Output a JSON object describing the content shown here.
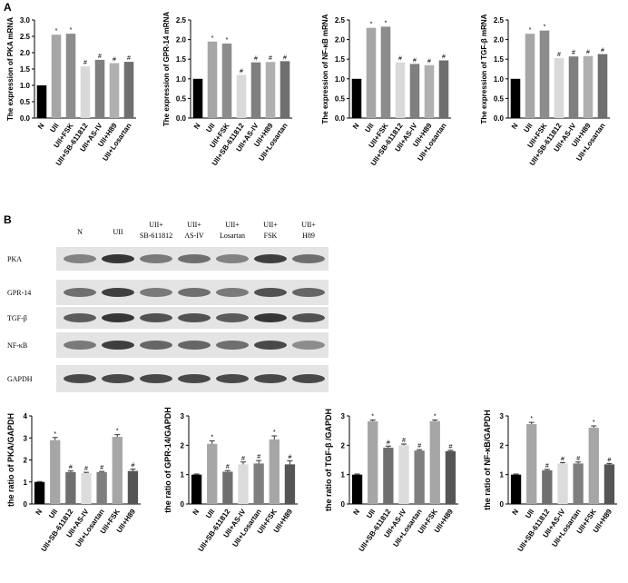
{
  "panel_labels": [
    "A",
    "B"
  ],
  "blot": {
    "lanes": [
      [
        "N"
      ],
      [
        "UII"
      ],
      [
        "UII+",
        "SB-611812"
      ],
      [
        "UII+",
        "AS-IV"
      ],
      [
        "UII+",
        "Losartan"
      ],
      [
        "UII+",
        "FSK"
      ],
      [
        "UII+",
        "H89"
      ]
    ],
    "rows": [
      "PKA",
      "GPR-14",
      "TGF-β",
      "NF-κB",
      "GAPDH"
    ]
  },
  "chart_data": [
    {
      "type": "bar",
      "title": "The expression of PKA mRNA",
      "categories": [
        "N",
        "UII",
        "UII+FSK",
        "UII+SB-611812",
        "UII+AS-IV",
        "UII+H89",
        "UII+Losartan"
      ],
      "values": [
        1.0,
        2.55,
        2.58,
        1.58,
        1.78,
        1.68,
        1.72
      ],
      "annotations": [
        null,
        "*",
        "*",
        "#",
        "#",
        "#",
        "#"
      ],
      "colors": [
        "#000000",
        "#a6a6a6",
        "#8c8c8c",
        "#d9d9d9",
        "#7f7f7f",
        "#b0b0b0",
        "#6f6f6f"
      ],
      "ylim": [
        0,
        3
      ],
      "yticks": [
        {
          "value": 0,
          "label": "0.0"
        },
        {
          "value": 0.5,
          "label": "0.5"
        },
        {
          "value": 1,
          "label": "1.0"
        },
        {
          "value": 1.5,
          "label": "1.5"
        },
        {
          "value": 2,
          "label": "2.0"
        },
        {
          "value": 2.5,
          "label": "2.5"
        },
        {
          "value": 3,
          "label": "3.0"
        }
      ]
    },
    {
      "type": "bar",
      "title": "The expression of GPR-14 mRNA",
      "categories": [
        "N",
        "UII",
        "UII+FSK",
        "UII+SB-611812",
        "UII+AS-IV",
        "UII+H89",
        "UII+Losartan"
      ],
      "values": [
        1.0,
        1.95,
        1.9,
        1.1,
        1.42,
        1.43,
        1.45
      ],
      "annotations": [
        null,
        "*",
        "*",
        "#",
        "#",
        "#",
        "#"
      ],
      "colors": [
        "#000000",
        "#a6a6a6",
        "#8c8c8c",
        "#d9d9d9",
        "#7f7f7f",
        "#b0b0b0",
        "#6f6f6f"
      ],
      "ylim": [
        0,
        2.5
      ],
      "yticks": [
        {
          "value": 0,
          "label": "0.0"
        },
        {
          "value": 0.5,
          "label": "0.5"
        },
        {
          "value": 1,
          "label": "1.0"
        },
        {
          "value": 1.5,
          "label": "1.5"
        },
        {
          "value": 2,
          "label": "2.0"
        },
        {
          "value": 2.5,
          "label": "2.5"
        }
      ]
    },
    {
      "type": "bar",
      "title": "The expression of NF-κB mRNA",
      "categories": [
        "N",
        "UII",
        "UII+FSK",
        "UII+SB-611812",
        "UII+AS-IV",
        "UII+H89",
        "UII+Losartan"
      ],
      "values": [
        1.0,
        2.3,
        2.33,
        1.42,
        1.38,
        1.35,
        1.47
      ],
      "annotations": [
        null,
        "*",
        "*",
        "#",
        "#",
        "#",
        "#"
      ],
      "colors": [
        "#000000",
        "#a6a6a6",
        "#8c8c8c",
        "#d9d9d9",
        "#7f7f7f",
        "#b0b0b0",
        "#6f6f6f"
      ],
      "ylim": [
        0,
        2.5
      ],
      "yticks": [
        {
          "value": 0,
          "label": "0.0"
        },
        {
          "value": 0.5,
          "label": "0.5"
        },
        {
          "value": 1,
          "label": "1.0"
        },
        {
          "value": 1.5,
          "label": "1.5"
        },
        {
          "value": 2,
          "label": "2.0"
        },
        {
          "value": 2.5,
          "label": "2.5"
        }
      ]
    },
    {
      "type": "bar",
      "title": "The expression of TGF-β mRNA",
      "categories": [
        "N",
        "UII",
        "UII+FSK",
        "UII+SB-611812",
        "UII+AS-IV",
        "UII+H89",
        "UII+Losartan"
      ],
      "values": [
        1.0,
        2.15,
        2.23,
        1.53,
        1.57,
        1.58,
        1.63
      ],
      "annotations": [
        null,
        "*",
        "*",
        "#",
        "#",
        "#",
        "#"
      ],
      "colors": [
        "#000000",
        "#a6a6a6",
        "#8c8c8c",
        "#d9d9d9",
        "#7f7f7f",
        "#b0b0b0",
        "#6f6f6f"
      ],
      "ylim": [
        0,
        2.5
      ],
      "yticks": [
        {
          "value": 0,
          "label": "0.0"
        },
        {
          "value": 0.5,
          "label": "0.5"
        },
        {
          "value": 1,
          "label": "1.0"
        },
        {
          "value": 1.5,
          "label": "1.5"
        },
        {
          "value": 2,
          "label": "2.0"
        },
        {
          "value": 2.5,
          "label": "2.5"
        }
      ]
    },
    {
      "type": "bar",
      "title": "the ratio of PKA/GAPDH",
      "categories": [
        "N",
        "UII",
        "UII+SB-611812",
        "UII+AS-IV",
        "UII+Losartan",
        "UII+FSK",
        "UII+H89"
      ],
      "values": [
        1.0,
        2.9,
        1.45,
        1.4,
        1.45,
        3.05,
        1.5
      ],
      "errors": [
        0.02,
        0.12,
        0.05,
        0.04,
        0.03,
        0.1,
        0.08
      ],
      "annotations": [
        null,
        "*",
        "#",
        "#",
        "#",
        "*",
        "#"
      ],
      "colors": [
        "#000000",
        "#a6a6a6",
        "#6f6f6f",
        "#dcdcdc",
        "#7f7f7f",
        "#a6a6a6",
        "#555555"
      ],
      "ylim": [
        0,
        4
      ],
      "yticks": [
        0,
        1,
        2,
        3,
        4
      ]
    },
    {
      "type": "bar",
      "title": "the ratio of GPR-14/GAPDH",
      "categories": [
        "N",
        "UII",
        "UII+SB-611812",
        "UII+AS-IV",
        "UII+Losartan",
        "UII+FSK",
        "UII+H89"
      ],
      "values": [
        1.0,
        2.05,
        1.1,
        1.35,
        1.38,
        2.2,
        1.35
      ],
      "errors": [
        0.02,
        0.1,
        0.04,
        0.08,
        0.1,
        0.12,
        0.12
      ],
      "annotations": [
        null,
        "*",
        "#",
        "#",
        "#",
        "*",
        "#"
      ],
      "colors": [
        "#000000",
        "#a6a6a6",
        "#6f6f6f",
        "#dcdcdc",
        "#7f7f7f",
        "#a6a6a6",
        "#555555"
      ],
      "ylim": [
        0,
        3
      ],
      "yticks": [
        0,
        1,
        2,
        3
      ]
    },
    {
      "type": "bar",
      "title": "the ratio of TGF-β /GAPDH",
      "categories": [
        "N",
        "UII",
        "UII+SB-611812",
        "UII+AS-IV",
        "UII+Losartan",
        "UII+FSK",
        "UII+H89"
      ],
      "values": [
        1.0,
        2.82,
        1.92,
        2.0,
        1.82,
        2.82,
        1.8
      ],
      "errors": [
        0.02,
        0.04,
        0.05,
        0.04,
        0.03,
        0.04,
        0.03
      ],
      "annotations": [
        null,
        "*",
        "#",
        "#",
        "#",
        "*",
        "#"
      ],
      "colors": [
        "#000000",
        "#a6a6a6",
        "#6f6f6f",
        "#dcdcdc",
        "#7f7f7f",
        "#a6a6a6",
        "#555555"
      ],
      "ylim": [
        0,
        3
      ],
      "yticks": [
        0,
        1,
        2,
        3
      ]
    },
    {
      "type": "bar",
      "title": "the ratio of NF-κB/GAPDH",
      "categories": [
        "N",
        "UII",
        "UII+SB-611812",
        "UII+AS-IV",
        "UII+Losartan",
        "UII+FSK",
        "UII+H89"
      ],
      "values": [
        1.0,
        2.72,
        1.15,
        1.38,
        1.38,
        2.6,
        1.35
      ],
      "errors": [
        0.02,
        0.06,
        0.03,
        0.03,
        0.05,
        0.06,
        0.03
      ],
      "annotations": [
        null,
        "*",
        "#",
        "#",
        "#",
        "*",
        "#"
      ],
      "colors": [
        "#000000",
        "#a6a6a6",
        "#6f6f6f",
        "#dcdcdc",
        "#7f7f7f",
        "#a6a6a6",
        "#555555"
      ],
      "ylim": [
        0,
        3
      ],
      "yticks": [
        0,
        1,
        2,
        3
      ]
    }
  ]
}
